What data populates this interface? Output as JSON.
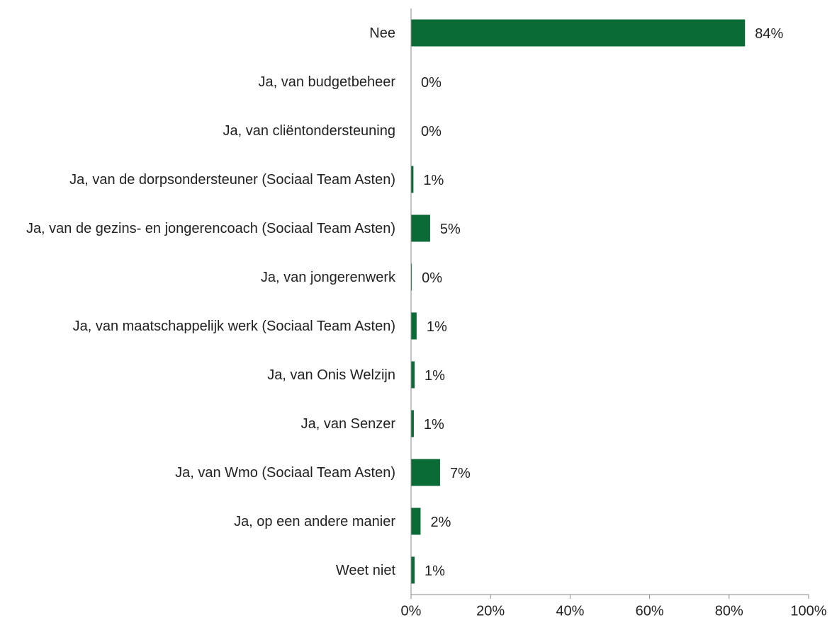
{
  "chart_data": {
    "type": "bar",
    "orientation": "horizontal",
    "categories": [
      "Nee",
      "Ja, van budgetbeheer",
      "Ja, van cliëntondersteuning",
      "Ja, van de dorpsondersteuner (Sociaal Team Asten)",
      "Ja, van de gezins- en jongerencoach (Sociaal Team Asten)",
      "Ja, van jongerenwerk",
      "Ja, van maatschappelijk werk (Sociaal Team Asten)",
      "Ja, van Onis Welzijn",
      "Ja, van Senzer",
      "Ja, van Wmo (Sociaal Team Asten)",
      "Ja, op een andere manier",
      "Weet niet"
    ],
    "values": [
      84,
      0,
      0,
      0.6,
      4.8,
      0.2,
      1.4,
      0.9,
      0.7,
      7.3,
      2.4,
      0.9
    ],
    "value_labels": [
      "84%",
      "0%",
      "0%",
      "1%",
      "5%",
      "0%",
      "1%",
      "1%",
      "1%",
      "7%",
      "2%",
      "1%"
    ],
    "color": "#0a6b36",
    "xlim": [
      0,
      100
    ],
    "xticks": [
      {
        "value": 0,
        "label": "0%"
      },
      {
        "value": 20,
        "label": "20%"
      },
      {
        "value": 40,
        "label": "40%"
      },
      {
        "value": 60,
        "label": "60%"
      },
      {
        "value": 80,
        "label": "80%"
      },
      {
        "value": 100,
        "label": "100%"
      }
    ]
  }
}
